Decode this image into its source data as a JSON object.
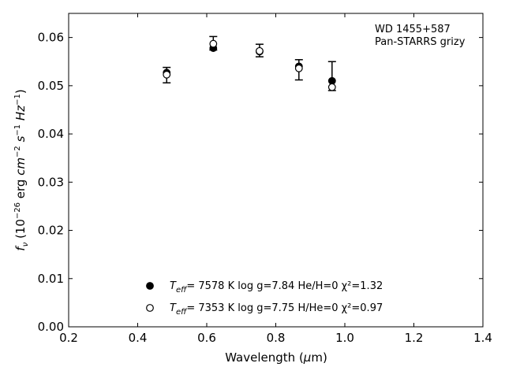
{
  "chart_data": {
    "type": "scatter",
    "xlabel": "Wavelength (μm)",
    "ylabel": "f_ν (10^-26 erg cm^-2 s^-1 Hz^-1)",
    "xlim": [
      0.2,
      1.4
    ],
    "ylim": [
      0.0,
      0.065
    ],
    "xticks": [
      "0.2",
      "0.4",
      "0.6",
      "0.8",
      "1.0",
      "1.2",
      "1.4"
    ],
    "yticks": [
      "0.00",
      "0.01",
      "0.02",
      "0.03",
      "0.04",
      "0.05",
      "0.06"
    ],
    "annotation": [
      "WD 1455+587",
      "Pan-STARRS grizy"
    ],
    "observed": {
      "x": [
        0.484,
        0.619,
        0.753,
        0.867,
        0.963
      ],
      "y": [
        0.0522,
        0.0588,
        0.0573,
        0.0533,
        0.052
      ],
      "yerr": [
        0.0016,
        0.0014,
        0.0013,
        0.0021,
        0.003
      ]
    },
    "series": [
      {
        "marker": "filled-circle",
        "legend": {
          "teff_value": "7578 K",
          "logg": "log g=7.84",
          "comp": "He/H=0",
          "chi": "χ²=1.32"
        },
        "x": [
          0.484,
          0.619,
          0.753,
          0.867,
          0.963
        ],
        "y": [
          0.0527,
          0.0578,
          0.0571,
          0.054,
          0.051
        ]
      },
      {
        "marker": "open-circle",
        "legend": {
          "teff_value": "7353 K",
          "logg": "log g=7.75",
          "comp": "H/He=0",
          "chi": "χ²=0.97"
        },
        "x": [
          0.484,
          0.619,
          0.753,
          0.867,
          0.963
        ],
        "y": [
          0.0523,
          0.0587,
          0.0572,
          0.0536,
          0.0497
        ]
      }
    ]
  }
}
